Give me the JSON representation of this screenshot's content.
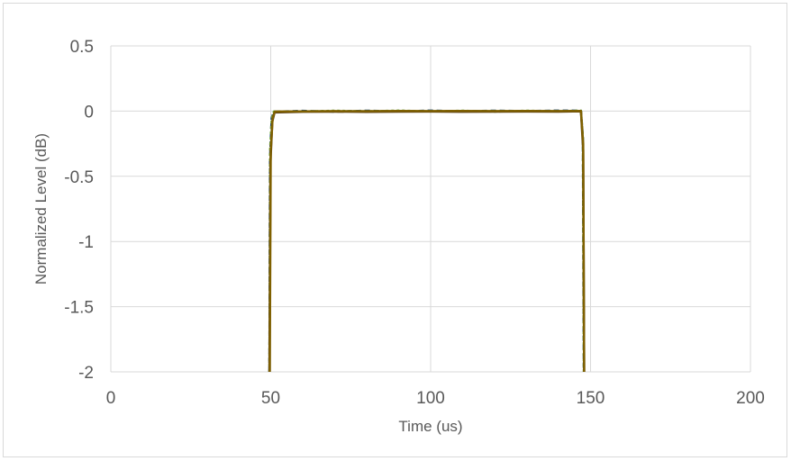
{
  "chart_data": {
    "type": "line",
    "title": "",
    "xlabel": "Time (us)",
    "ylabel": "Normalized Level (dB)",
    "xlim": [
      0,
      200
    ],
    "ylim": [
      -2,
      0.5
    ],
    "x_ticks": [
      0,
      50,
      100,
      150,
      200
    ],
    "y_ticks": [
      0.5,
      0,
      -0.5,
      -1,
      -1.5,
      -2
    ],
    "x_tick_labels": [
      "0",
      "50",
      "100",
      "150",
      "200"
    ],
    "y_tick_labels": [
      "0.5",
      "0",
      "-0.5",
      "-1",
      "-1.5",
      "-2"
    ],
    "grid": true,
    "legend": "none",
    "series": [
      {
        "color": "#1f4e79",
        "dash": "6 4",
        "x": [
          49.6,
          49.8,
          50.3,
          51,
          60,
          70,
          80,
          90,
          100,
          110,
          120,
          130,
          140,
          147,
          147.6,
          147.9
        ],
        "y": [
          -2,
          -0.35,
          -0.05,
          -0.005,
          0.002,
          -0.004,
          0.003,
          -0.003,
          0.004,
          -0.002,
          0.003,
          0.0,
          0.004,
          0.003,
          -0.2,
          -2
        ]
      },
      {
        "color": "#70ad47",
        "dash": "3 3",
        "x": [
          49.6,
          49.8,
          50.3,
          51,
          60,
          70,
          80,
          90,
          100,
          110,
          120,
          130,
          140,
          147,
          147.6,
          147.9
        ],
        "y": [
          -2,
          -0.3,
          -0.06,
          -0.002,
          -0.003,
          0.003,
          -0.002,
          0.004,
          -0.003,
          0.003,
          -0.004,
          0.003,
          -0.002,
          0.004,
          -0.2,
          -2
        ]
      },
      {
        "color": "#5a3e1b",
        "dash": "",
        "x": [
          49.6,
          49.9,
          50.5,
          51.2,
          60,
          70,
          80,
          90,
          100,
          110,
          120,
          130,
          140,
          147,
          147.7,
          148
        ],
        "y": [
          -2,
          -0.4,
          -0.08,
          -0.01,
          -0.005,
          -0.004,
          -0.006,
          -0.004,
          -0.003,
          -0.005,
          -0.004,
          -0.003,
          -0.004,
          -0.002,
          -0.3,
          -2
        ]
      },
      {
        "color": "#7f6000",
        "dash": "",
        "x": [
          49.7,
          50.0,
          50.6,
          51.3,
          60,
          70,
          80,
          90,
          100,
          110,
          120,
          130,
          140,
          147,
          147.7,
          148
        ],
        "y": [
          -2,
          -0.3,
          -0.05,
          -0.003,
          -0.002,
          0.0,
          -0.001,
          0.001,
          0.0,
          0.001,
          0.0,
          0.001,
          0.0,
          0.001,
          -0.25,
          -2
        ]
      }
    ]
  }
}
